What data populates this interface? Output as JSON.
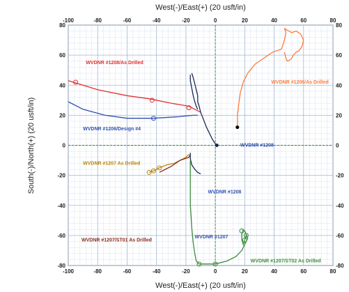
{
  "chart_data": {
    "type": "line",
    "xlabel": "West(-)/East(+) (20 usft/in)",
    "ylabel": "South(-)/North(+) (20 usft/in)",
    "xlim": [
      -100,
      80
    ],
    "ylim": [
      -80,
      80
    ],
    "x_ticks": [
      "-100",
      "-80",
      "-60",
      "-40",
      "-20",
      "0",
      "20",
      "40",
      "60",
      "80"
    ],
    "y_ticks": [
      "80",
      "60",
      "40",
      "20",
      "0",
      "-20",
      "-40",
      "-60",
      "-80"
    ],
    "grid": true,
    "series": [
      {
        "name": "WVDNR #1208 As Drilled",
        "color": "#e03030",
        "x": [
          -100,
          -80,
          -60,
          -45,
          -30,
          -18,
          -14,
          -10
        ],
        "y": [
          43,
          37,
          33,
          31,
          28,
          26,
          24,
          22
        ]
      },
      {
        "name": "WVDNR #1206/Design #4",
        "color": "#2f4fb0",
        "x": [
          -100,
          -90,
          -75,
          -60,
          -42,
          -25,
          -15,
          -12
        ],
        "y": [
          29,
          24,
          20,
          18,
          18,
          19,
          20,
          20
        ]
      },
      {
        "name": "WVDNR #1208",
        "color": "#1a2a5a",
        "x": [
          -16,
          -15,
          -14,
          -13,
          -12,
          -12,
          -11,
          -10,
          -8,
          -6,
          -4,
          -2,
          0,
          1
        ],
        "y": [
          48,
          45,
          41,
          37,
          33,
          29,
          26,
          22,
          17,
          12,
          8,
          4,
          1,
          0
        ]
      },
      {
        "name": "WVDNR #1206",
        "color": "#1a2a5a",
        "x": [
          -17,
          -17,
          -16,
          -15,
          -14,
          -13,
          -12
        ],
        "y": [
          47,
          43,
          38,
          33,
          29,
          26,
          24
        ]
      },
      {
        "name": "WVDNR #1206 As Drilled",
        "color": "#ff7a3c",
        "x": [
          15,
          15,
          16,
          17,
          19,
          22,
          27,
          33,
          39,
          45,
          47,
          48,
          47,
          48,
          50,
          52,
          55,
          58,
          60,
          59,
          57,
          55,
          53,
          52,
          51,
          49,
          48,
          47
        ],
        "y": [
          12,
          20,
          28,
          35,
          42,
          48,
          54,
          58,
          62,
          64,
          70,
          75,
          78,
          77,
          76,
          75,
          76,
          74,
          70,
          66,
          63,
          62,
          60,
          58,
          57,
          56,
          58,
          62
        ]
      },
      {
        "name": "WVDNR #1207 As Drilled",
        "color": "#b8860b",
        "x": [
          -45,
          -42,
          -38,
          -33,
          -28,
          -24,
          -20,
          -18
        ],
        "y": [
          -18,
          -17,
          -15,
          -13,
          -12,
          -10,
          -8,
          -6
        ]
      },
      {
        "name": "WVDNR #1207/ST01 As Drilled",
        "color": "#8b2a1e",
        "x": [
          -38,
          -34,
          -30,
          -27,
          -24,
          -21,
          -18,
          -17
        ],
        "y": [
          -18,
          -16,
          -14,
          -12,
          -10,
          -9,
          -8,
          -6
        ]
      },
      {
        "name": "WVDNR #1207",
        "color": "#1a2a5a",
        "x": [
          -17,
          -17,
          -16,
          -14,
          -12,
          -10
        ],
        "y": [
          -5,
          -9,
          -13,
          -16,
          -18,
          -19
        ]
      },
      {
        "name": "WVDNR #1207/ST02 As Drilled",
        "color": "#3c8a3c",
        "x": [
          -17,
          -17,
          -17,
          -16,
          -15,
          -14,
          -13,
          -11,
          -5,
          0,
          8,
          14,
          18,
          20,
          22,
          21,
          20,
          19,
          18,
          18,
          19,
          20,
          21
        ],
        "y": [
          -10,
          -25,
          -40,
          -55,
          -65,
          -72,
          -77,
          -79,
          -79,
          -79,
          -77,
          -74,
          -70,
          -66,
          -62,
          -59,
          -57,
          -56,
          -59,
          -63,
          -66,
          -63,
          -60
        ]
      }
    ],
    "markers": [
      {
        "color": "#e03030",
        "x": [
          -95,
          -43,
          -18
        ],
        "y": [
          42,
          30,
          25
        ]
      },
      {
        "color": "#2f4fb0",
        "x": [
          -42
        ],
        "y": [
          18
        ]
      },
      {
        "color": "#b8860b",
        "x": [
          -45,
          -42,
          -38
        ],
        "y": [
          -18,
          -17,
          -15
        ]
      },
      {
        "color": "#3c8a3c",
        "x": [
          -11,
          0,
          18,
          20,
          21
        ],
        "y": [
          -79,
          -79,
          -57,
          -63,
          -60
        ]
      }
    ],
    "labels": [
      {
        "text": "WVDNR #1208/As Drilled",
        "color": "#e03030",
        "x": -88,
        "y": 54
      },
      {
        "text": "WVDNR #1206/As Drilled",
        "color": "#ff7a3c",
        "x": 38,
        "y": 41
      },
      {
        "text": "WVDNR #1206/Design #4",
        "color": "#2f4fb0",
        "x": -90,
        "y": 10
      },
      {
        "text": "WVDNR #1208",
        "color": "#2f4fb0",
        "x": 17,
        "y": -1
      },
      {
        "text": "WVDNR #1207 As Drilled",
        "color": "#b8860b",
        "x": -90,
        "y": -13
      },
      {
        "text": "WVDNR #1208",
        "color": "#2f4fb0",
        "x": -5,
        "y": -32
      },
      {
        "text": "WVDNR #1207/ST01 As Drilled",
        "color": "#8b2a1e",
        "x": -91,
        "y": -64
      },
      {
        "text": "WVDNR #1207",
        "color": "#2f4fb0",
        "x": -14,
        "y": -62
      },
      {
        "text": "WVDNR #1207/ST02 As Drilled",
        "color": "#3c8a3c",
        "x": 24,
        "y": -78
      }
    ]
  }
}
